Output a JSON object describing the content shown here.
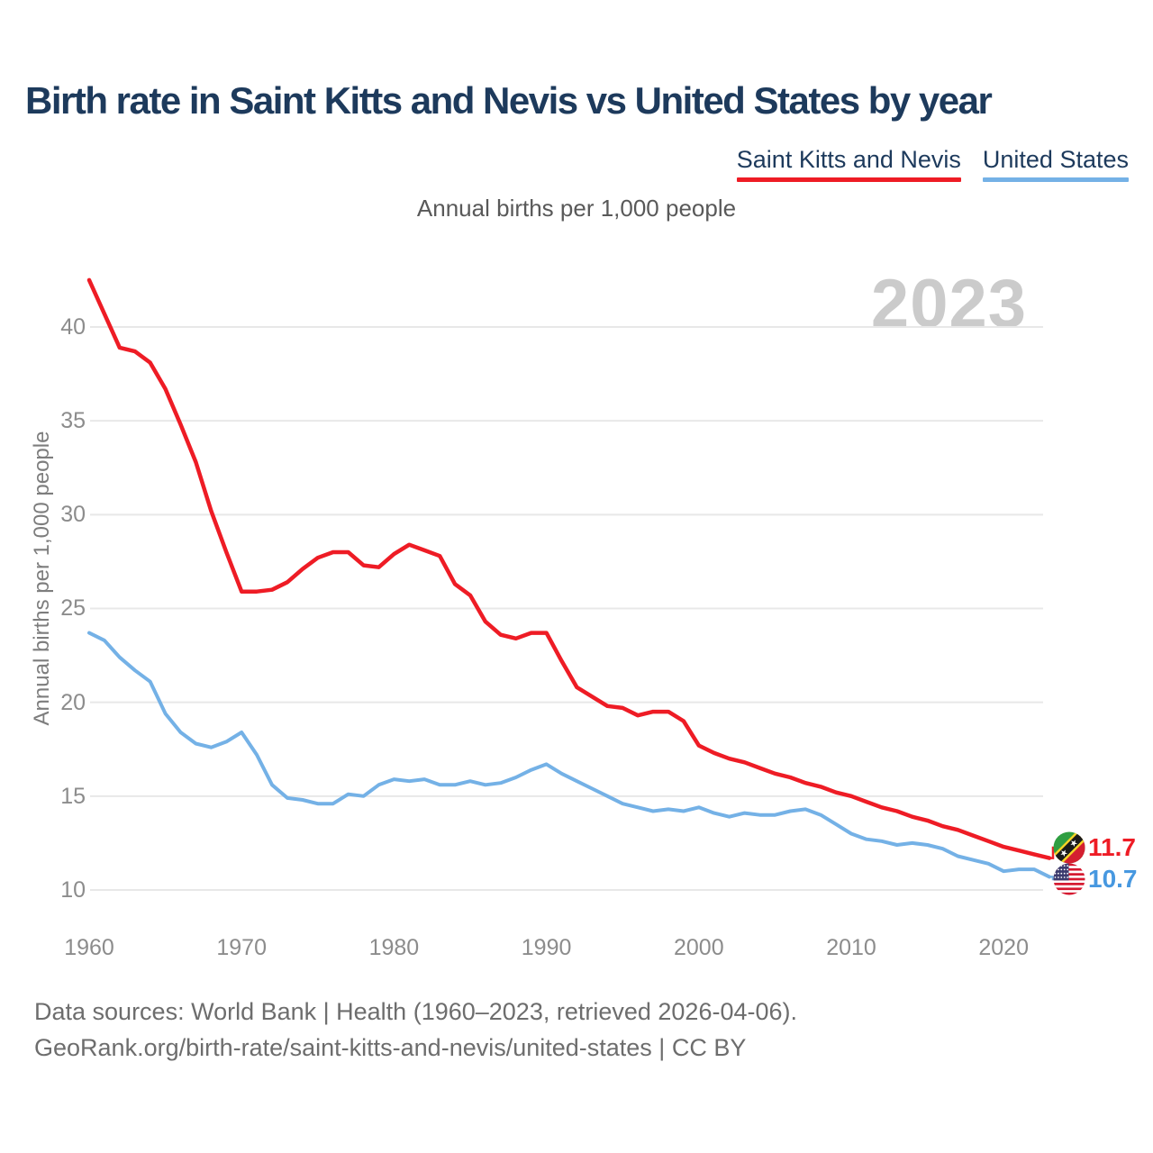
{
  "title": "Birth rate in Saint Kitts and Nevis vs United States by year",
  "subtitle": "Annual births per 1,000 people",
  "watermark": "2023",
  "legend": [
    {
      "label": "Saint Kitts and Nevis",
      "color": "#ee1c25"
    },
    {
      "label": "United States",
      "color": "#74b1e6"
    }
  ],
  "y_axis": {
    "label": "Annual births per 1,000 people",
    "ticks": [
      40,
      35,
      30,
      25,
      20,
      15,
      10
    ]
  },
  "x_axis": {
    "ticks": [
      1960,
      1970,
      1980,
      1990,
      2000,
      2010,
      2020
    ]
  },
  "chart_data": {
    "type": "line",
    "title": "Birth rate in Saint Kitts and Nevis vs United States by year",
    "subtitle": "Annual births per 1,000 people",
    "xlabel": "",
    "ylabel": "Annual births per 1,000 people",
    "xlim": [
      1960,
      2023
    ],
    "ylim": [
      8.5,
      43.5
    ],
    "grid": true,
    "legend_position": "top-right",
    "x": [
      1960,
      1961,
      1962,
      1963,
      1964,
      1965,
      1966,
      1967,
      1968,
      1969,
      1970,
      1971,
      1972,
      1973,
      1974,
      1975,
      1976,
      1977,
      1978,
      1979,
      1980,
      1981,
      1982,
      1983,
      1984,
      1985,
      1986,
      1987,
      1988,
      1989,
      1990,
      1991,
      1992,
      1993,
      1994,
      1995,
      1996,
      1997,
      1998,
      1999,
      2000,
      2001,
      2002,
      2003,
      2004,
      2005,
      2006,
      2007,
      2008,
      2009,
      2010,
      2011,
      2012,
      2013,
      2014,
      2015,
      2016,
      2017,
      2018,
      2019,
      2020,
      2021,
      2022,
      2023
    ],
    "series": [
      {
        "name": "Saint Kitts and Nevis",
        "color": "#ee1c25",
        "end_label": "11.7",
        "end_icon": "saint-kitts-and-nevis-flag-icon",
        "values": [
          42.5,
          40.7,
          38.9,
          38.7,
          38.1,
          36.7,
          34.8,
          32.8,
          30.2,
          28.0,
          25.9,
          25.9,
          26.0,
          26.4,
          27.1,
          27.7,
          28.0,
          28.0,
          27.3,
          27.2,
          27.9,
          28.4,
          28.1,
          27.8,
          26.3,
          25.7,
          24.3,
          23.6,
          23.4,
          23.7,
          23.7,
          22.2,
          20.8,
          20.3,
          19.8,
          19.7,
          19.3,
          19.5,
          19.5,
          19.0,
          17.7,
          17.3,
          17.0,
          16.8,
          16.5,
          16.2,
          16.0,
          15.7,
          15.5,
          15.2,
          15.0,
          14.7,
          14.4,
          14.2,
          13.9,
          13.7,
          13.4,
          13.2,
          12.9,
          12.6,
          12.3,
          12.1,
          11.9,
          11.7
        ]
      },
      {
        "name": "United States",
        "color": "#74b1e6",
        "end_label": "10.7",
        "end_icon": "united-states-flag-icon",
        "values": [
          23.7,
          23.3,
          22.4,
          21.7,
          21.1,
          19.4,
          18.4,
          17.8,
          17.6,
          17.9,
          18.4,
          17.2,
          15.6,
          14.9,
          14.8,
          14.6,
          14.6,
          15.1,
          15.0,
          15.6,
          15.9,
          15.8,
          15.9,
          15.6,
          15.6,
          15.8,
          15.6,
          15.7,
          16.0,
          16.4,
          16.7,
          16.2,
          15.8,
          15.4,
          15.0,
          14.6,
          14.4,
          14.2,
          14.3,
          14.2,
          14.4,
          14.1,
          13.9,
          14.1,
          14.0,
          14.0,
          14.2,
          14.3,
          14.0,
          13.5,
          13.0,
          12.7,
          12.6,
          12.4,
          12.5,
          12.4,
          12.2,
          11.8,
          11.6,
          11.4,
          11.0,
          11.1,
          11.1,
          10.7
        ]
      }
    ]
  },
  "end_labels": {
    "saint_kitts": "11.7",
    "united_states": "10.7"
  },
  "colors": {
    "accent_red": "#ee1c25",
    "accent_blue": "#74b1e6",
    "blue_label": "#4798e0",
    "title_navy": "#1d3a5c",
    "watermark_gray": "#cbcbcb",
    "gridline": "#e8e8e8",
    "tick_gray": "#8c8c8c"
  },
  "footer": {
    "line1": "Data sources: World Bank | Health (1960–2023, retrieved 2026-04-06).",
    "line2": "GeoRank.org/birth-rate/saint-kitts-and-nevis/united-states | CC BY"
  }
}
